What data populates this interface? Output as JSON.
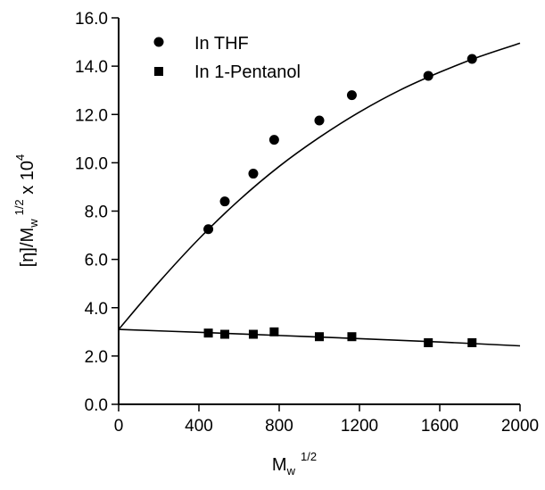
{
  "chart_data": {
    "type": "scatter",
    "title": "",
    "xlabel": {
      "base": "M",
      "sub": "w",
      "sup": "1/2"
    },
    "ylabel": {
      "pre": "[η]/M",
      "sub": "w",
      "sup": "1/2",
      "mid": " x 10",
      "sup2": "4"
    },
    "xlim": [
      0,
      2000
    ],
    "ylim": [
      0.0,
      16.0
    ],
    "xticks": [
      0,
      400,
      800,
      1200,
      1600,
      2000
    ],
    "xtick_labels": [
      "0",
      "400",
      "800",
      "1200",
      "1600",
      "2000"
    ],
    "yticks": [
      0,
      2,
      4,
      6,
      8,
      10,
      12,
      14,
      16
    ],
    "ytick_labels": [
      "0.0",
      "2.0",
      "4.0",
      "6.0",
      "8.0",
      "10.0",
      "12.0",
      "14.0",
      "16.0"
    ],
    "grid": false,
    "legend_position": "top-left",
    "series": [
      {
        "name": "In THF",
        "marker": "circle",
        "x": [
          447,
          529,
          671,
          775,
          1000,
          1162,
          1543,
          1761
        ],
        "y": [
          7.25,
          8.4,
          9.55,
          10.95,
          11.75,
          12.8,
          13.6,
          14.3
        ],
        "fit": {
          "x": [
            0,
            200,
            400,
            600,
            800,
            1000,
            1200,
            1400,
            1600,
            1800,
            2000
          ],
          "y": [
            3.1,
            5.05,
            6.85,
            8.45,
            9.85,
            11.05,
            12.1,
            13.0,
            13.75,
            14.4,
            14.95
          ]
        }
      },
      {
        "name": "In 1-Pentanol",
        "marker": "square",
        "x": [
          447,
          529,
          671,
          775,
          1000,
          1162,
          1543,
          1761
        ],
        "y": [
          2.95,
          2.9,
          2.9,
          3.0,
          2.8,
          2.8,
          2.55,
          2.55
        ],
        "fit": {
          "x": [
            0,
            400,
            800,
            1200,
            1600,
            2000
          ],
          "y": [
            3.1,
            2.98,
            2.85,
            2.72,
            2.58,
            2.42
          ]
        }
      }
    ]
  }
}
